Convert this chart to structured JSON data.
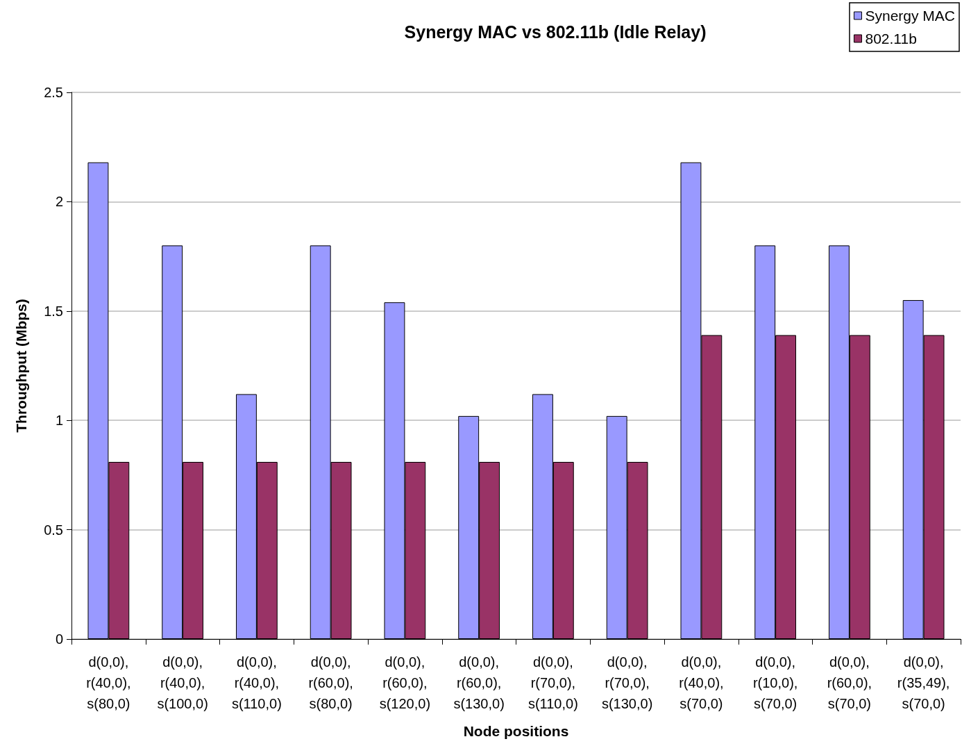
{
  "chart_data": {
    "type": "bar",
    "title": "Synergy MAC vs 802.11b (Idle Relay)",
    "xlabel": "Node positions",
    "ylabel": "Throughput (Mbps)",
    "categories": [
      "d(0,0),\nr(40,0),\ns(80,0)",
      "d(0,0),\nr(40,0),\ns(100,0)",
      "d(0,0),\nr(40,0),\ns(110,0)",
      "d(0,0),\nr(60,0),\ns(80,0)",
      "d(0,0),\nr(60,0),\ns(120,0)",
      "d(0,0),\nr(60,0),\ns(130,0)",
      "d(0,0),\nr(70,0),\ns(110,0)",
      "d(0,0),\nr(70,0),\ns(130,0)",
      "d(0,0),\nr(40,0),\ns(70,0)",
      "d(0,0),\nr(10,0),\ns(70,0)",
      "d(0,0),\nr(60,0),\ns(70,0)",
      "d(0,0),\nr(35,49),\ns(70,0)"
    ],
    "series": [
      {
        "name": "Synergy MAC",
        "color": "#9999ff",
        "values": [
          2.18,
          1.8,
          1.12,
          1.8,
          1.54,
          1.02,
          1.12,
          1.02,
          2.18,
          1.8,
          1.8,
          1.55
        ]
      },
      {
        "name": "802.11b",
        "color": "#993366",
        "values": [
          0.81,
          0.81,
          0.81,
          0.81,
          0.81,
          0.81,
          0.81,
          0.81,
          1.39,
          1.39,
          1.39,
          1.39
        ]
      }
    ],
    "ylim": [
      0,
      2.5
    ],
    "yticks": [
      0,
      0.5,
      1,
      1.5,
      2,
      2.5
    ],
    "grid": "y",
    "legend": "top right"
  }
}
